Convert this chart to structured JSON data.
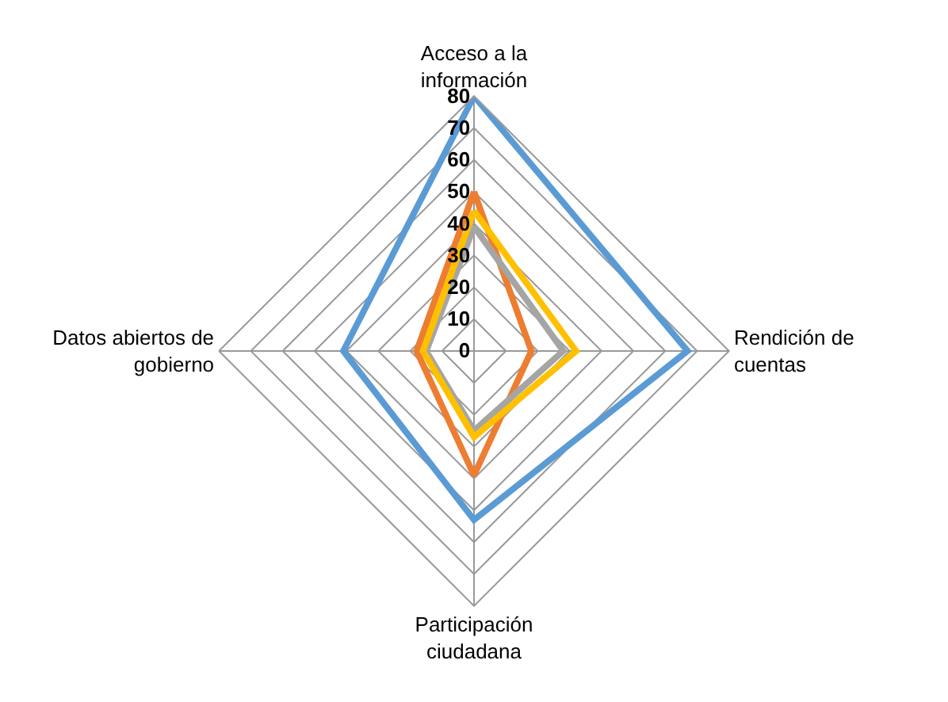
{
  "chart_data": {
    "type": "radar",
    "categories": [
      "Acceso a la información",
      "Rendición de cuentas",
      "Participación ciudadana",
      "Datos abiertos de gobierno"
    ],
    "series": [
      {
        "color": "#5b9bd5",
        "values": [
          80,
          67,
          53,
          41
        ]
      },
      {
        "color": "#ed7d31",
        "values": [
          50,
          18,
          39,
          18
        ]
      },
      {
        "color": "#a5a5a5",
        "values": [
          39,
          28,
          25,
          15
        ]
      },
      {
        "color": "#ffc000",
        "values": [
          44,
          32,
          27,
          16
        ]
      }
    ],
    "ylim": [
      0,
      80
    ],
    "yticks": [
      0,
      10,
      20,
      30,
      40,
      50,
      60,
      70,
      80
    ],
    "grid": true,
    "marker": "none",
    "line_style": "solid"
  }
}
